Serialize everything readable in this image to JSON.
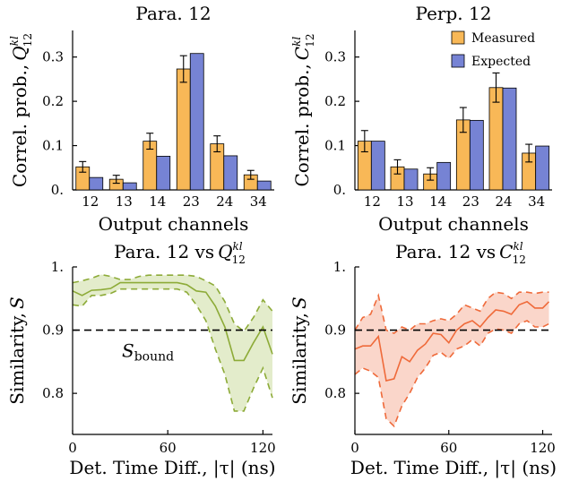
{
  "chart_data": [
    {
      "type": "bar",
      "title": "Para. 12",
      "ylabel": "Correl. prob.,",
      "ylabel_symbol": "Q",
      "ylabel_sup": "kl",
      "ylabel_sub": "12",
      "xlabel": "Output channels",
      "categories": [
        "12",
        "13",
        "14",
        "23",
        "24",
        "34"
      ],
      "ylim": [
        0,
        0.36
      ],
      "yticks": [
        0,
        0.1,
        0.2,
        0.3
      ],
      "ytick_labels": [
        "0.",
        "0.1",
        "0.2",
        "0.3"
      ],
      "series": [
        {
          "name": "Measured",
          "values": [
            0.052,
            0.024,
            0.11,
            0.273,
            0.104,
            0.034
          ],
          "errors": [
            0.012,
            0.009,
            0.018,
            0.03,
            0.018,
            0.01
          ]
        },
        {
          "name": "Expected",
          "values": [
            0.028,
            0.016,
            0.076,
            0.308,
            0.077,
            0.02
          ]
        }
      ]
    },
    {
      "type": "bar",
      "title": "Perp. 12",
      "ylabel": "Correl. prob.,",
      "ylabel_symbol": "C",
      "ylabel_sup": "kl",
      "ylabel_sub": "12",
      "xlabel": "Output channels",
      "categories": [
        "12",
        "13",
        "14",
        "23",
        "24",
        "34"
      ],
      "ylim": [
        0,
        0.36
      ],
      "yticks": [
        0,
        0.1,
        0.2,
        0.3
      ],
      "ytick_labels": [
        "0.",
        "0.1",
        "0.2",
        "0.3"
      ],
      "legend": {
        "position": "top-right",
        "entries": [
          "Measured",
          "Expected"
        ]
      },
      "series": [
        {
          "name": "Measured",
          "values": [
            0.11,
            0.052,
            0.036,
            0.158,
            0.231,
            0.083
          ],
          "errors": [
            0.024,
            0.016,
            0.014,
            0.028,
            0.033,
            0.02
          ]
        },
        {
          "name": "Expected",
          "values": [
            0.11,
            0.047,
            0.062,
            0.157,
            0.23,
            0.099
          ]
        }
      ]
    },
    {
      "type": "line",
      "title": "Para. 12 vs",
      "title_symbol": "Q",
      "title_sup": "kl",
      "title_sub": "12",
      "ylabel": "Similarity,",
      "ylabel_symbol": "S",
      "xlabel": "Det. Time Diff., |τ| (ns)",
      "xlim": [
        0,
        126
      ],
      "ylim": [
        0.735,
        1.0
      ],
      "xticks": [
        0,
        60,
        120
      ],
      "yticks": [
        0.8,
        0.9,
        1.0
      ],
      "ytick_labels": [
        "0.8",
        "0.9",
        "1."
      ],
      "x": [
        0,
        6,
        12,
        18,
        24,
        30,
        36,
        42,
        48,
        54,
        60,
        66,
        72,
        78,
        84,
        90,
        96,
        102,
        108,
        114,
        120,
        126
      ],
      "series": [
        {
          "name": "mean",
          "values": [
            0.962,
            0.955,
            0.963,
            0.964,
            0.966,
            0.975,
            0.975,
            0.975,
            0.975,
            0.975,
            0.975,
            0.975,
            0.972,
            0.962,
            0.96,
            0.938,
            0.905,
            0.852,
            0.852,
            0.88,
            0.905,
            0.862
          ]
        },
        {
          "name": "upper",
          "values": [
            0.975,
            0.978,
            0.982,
            0.988,
            0.985,
            0.98,
            0.98,
            0.985,
            0.987,
            0.987,
            0.987,
            0.987,
            0.987,
            0.985,
            0.978,
            0.97,
            0.945,
            0.91,
            0.898,
            0.92,
            0.948,
            0.93
          ]
        },
        {
          "name": "lower",
          "values": [
            0.94,
            0.938,
            0.955,
            0.955,
            0.958,
            0.965,
            0.965,
            0.965,
            0.965,
            0.965,
            0.965,
            0.965,
            0.96,
            0.94,
            0.915,
            0.87,
            0.83,
            0.772,
            0.772,
            0.808,
            0.84,
            0.793
          ]
        }
      ],
      "reference_line": {
        "y": 0.9,
        "label": "S",
        "label_sub": "bound"
      }
    },
    {
      "type": "line",
      "title": "Para. 12 vs",
      "title_symbol": "C",
      "title_sup": "kl",
      "title_sub": "12",
      "ylabel": "Similarity,",
      "ylabel_symbol": "S",
      "xlabel": "Det. Time Diff., |τ| (ns)",
      "xlim": [
        0,
        126
      ],
      "ylim": [
        0.735,
        1.0
      ],
      "xticks": [
        0,
        60,
        120
      ],
      "yticks": [
        0.8,
        0.9,
        1.0
      ],
      "ytick_labels": [
        "0.8",
        "0.9",
        "1."
      ],
      "x": [
        0,
        5,
        10,
        15,
        20,
        25,
        30,
        35,
        40,
        45,
        50,
        55,
        60,
        65,
        70,
        75,
        80,
        85,
        90,
        95,
        100,
        105,
        110,
        115,
        120,
        124
      ],
      "series": [
        {
          "name": "mean",
          "values": [
            0.87,
            0.875,
            0.875,
            0.89,
            0.82,
            0.823,
            0.858,
            0.85,
            0.868,
            0.878,
            0.895,
            0.893,
            0.88,
            0.9,
            0.91,
            0.915,
            0.905,
            0.92,
            0.932,
            0.93,
            0.925,
            0.94,
            0.945,
            0.935,
            0.935,
            0.945
          ]
        },
        {
          "name": "upper",
          "values": [
            0.9,
            0.92,
            0.925,
            0.955,
            0.9,
            0.895,
            0.905,
            0.9,
            0.91,
            0.91,
            0.915,
            0.918,
            0.915,
            0.925,
            0.94,
            0.935,
            0.93,
            0.95,
            0.96,
            0.958,
            0.95,
            0.96,
            0.96,
            0.958,
            0.96,
            0.96
          ]
        },
        {
          "name": "lower",
          "values": [
            0.83,
            0.84,
            0.835,
            0.825,
            0.76,
            0.748,
            0.78,
            0.8,
            0.825,
            0.84,
            0.86,
            0.865,
            0.855,
            0.87,
            0.875,
            0.885,
            0.875,
            0.895,
            0.902,
            0.9,
            0.895,
            0.91,
            0.915,
            0.905,
            0.905,
            0.91
          ]
        }
      ],
      "reference_line": {
        "y": 0.9
      }
    }
  ],
  "colors": {
    "measured": "#F8B857",
    "expected": "#7683D4",
    "green": "#8DAB38",
    "green_fill": "#E3ECCB",
    "orange": "#EF6A3A",
    "orange_fill": "#FAD6CA"
  }
}
